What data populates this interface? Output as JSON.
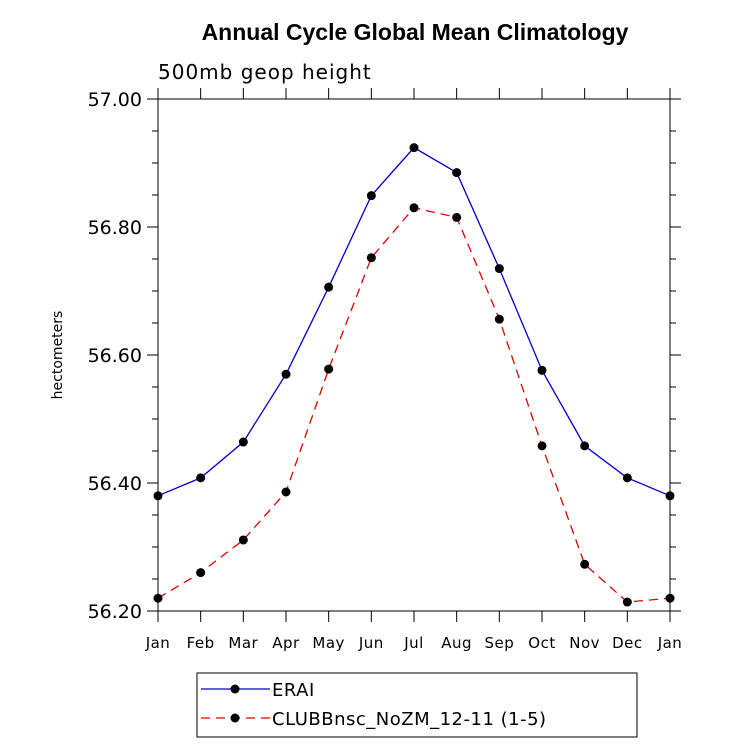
{
  "chart_data": {
    "type": "line",
    "title": "Annual Cycle Global Mean Climatology",
    "subtitle": "500mb geop height",
    "ylabel": "hectometers",
    "xlabel": "",
    "ylim": [
      56.2,
      57.0
    ],
    "yticks": [
      "56.20",
      "56.40",
      "56.60",
      "56.80",
      "57.00"
    ],
    "categories": [
      "Jan",
      "Feb",
      "Mar",
      "Apr",
      "May",
      "Jun",
      "Jul",
      "Aug",
      "Sep",
      "Oct",
      "Nov",
      "Dec",
      "Jan"
    ],
    "series": [
      {
        "name": "ERAI",
        "color": "#0000cc",
        "line_style": "solid",
        "values": [
          56.38,
          56.408,
          56.464,
          56.57,
          56.706,
          56.849,
          56.924,
          56.885,
          56.735,
          56.576,
          56.458,
          56.408,
          56.38
        ]
      },
      {
        "name": "CLUBBnsc_NoZM_12-11 (1-5)",
        "color": "#e00000",
        "line_style": "dashed",
        "values": [
          56.22,
          56.26,
          56.311,
          56.386,
          56.578,
          56.752,
          56.83,
          56.815,
          56.656,
          56.458,
          56.273,
          56.214,
          56.22
        ]
      }
    ],
    "grid": false,
    "legend_position": "bottom"
  }
}
